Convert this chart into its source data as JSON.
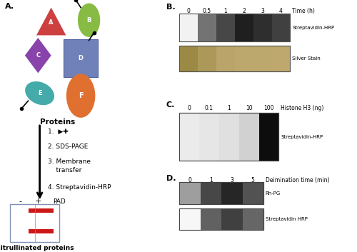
{
  "panel_B": {
    "label": "B.",
    "time_points": [
      "0",
      "0.5",
      "1",
      "2",
      "3",
      "4"
    ],
    "time_label": "Time (h)",
    "row1_label": "Streptavidin-HRP",
    "row2_label": "Silver Stain"
  },
  "panel_C": {
    "label": "C.",
    "amounts": [
      "0",
      "0.1",
      "1",
      "10",
      "100"
    ],
    "amount_label": "Histone H3 (ng)",
    "row_label": "Streptavidin-HRP"
  },
  "panel_D": {
    "label": "D.",
    "times": [
      "0",
      "1",
      "3",
      "5"
    ],
    "time_label": "Deimination time (min)",
    "row1_label": "Rh-PG",
    "row2_label": "Streptavidin HRP"
  },
  "figure_bg": "#ffffff",
  "label_fontsize": 8,
  "tick_fontsize": 6,
  "annot_fontsize": 6
}
